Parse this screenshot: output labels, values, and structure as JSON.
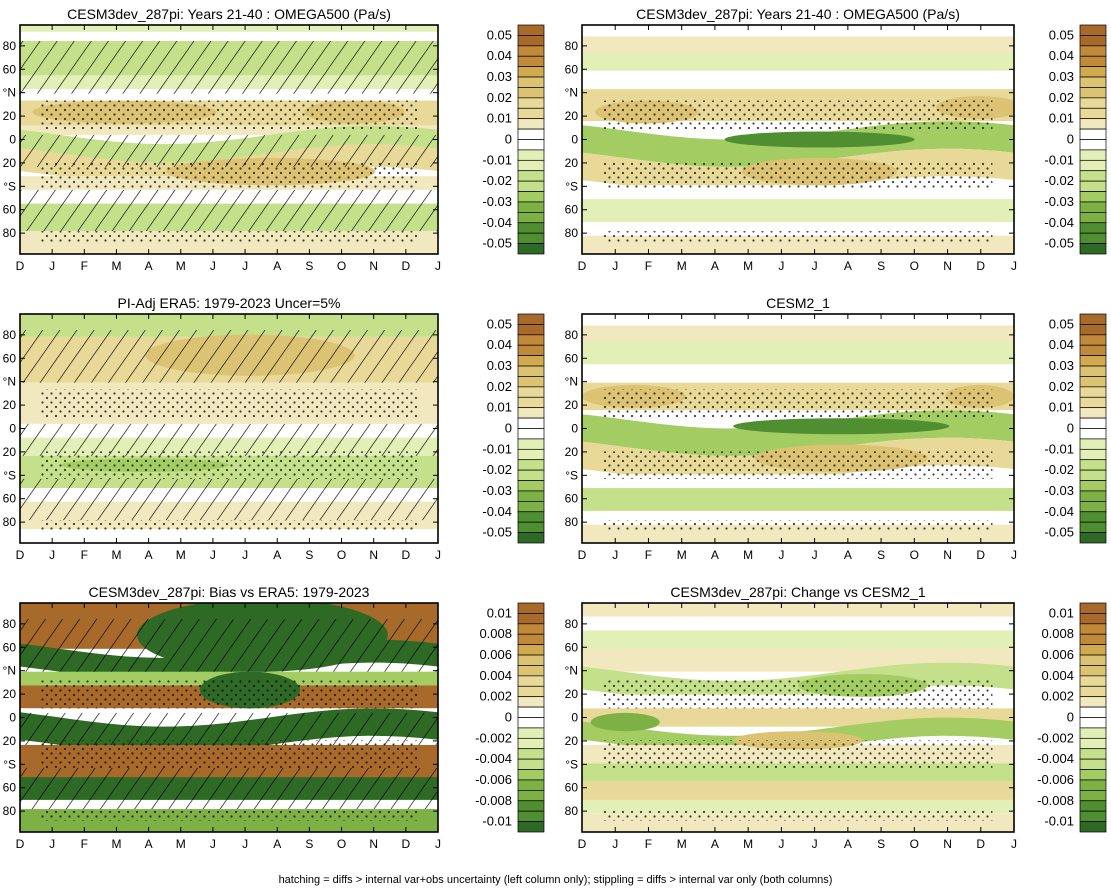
{
  "footnote": "hatching = diffs > internal var+obs uncertainty (left column only); stippling = diffs > internal var only (both columns)",
  "palette": {
    "brown": [
      "#f2e8bf",
      "#e8d999",
      "#dcc273",
      "#d1aa50",
      "#c08a3a",
      "#a86a2a"
    ],
    "green": [
      "#e2efb6",
      "#c5e08a",
      "#a3cd62",
      "#7db145",
      "#4f8f31",
      "#2e6a25"
    ]
  },
  "colorbars": {
    "main": [
      "0.05",
      "0.04",
      "0.03",
      "0.02",
      "0.01",
      "0",
      "-0.01",
      "-0.02",
      "-0.03",
      "-0.04",
      "-0.05"
    ],
    "diff": [
      "0.01",
      "0.008",
      "0.006",
      "0.004",
      "0.002",
      "0",
      "-0.002",
      "-0.004",
      "-0.006",
      "-0.008",
      "-0.01"
    ]
  },
  "axes": {
    "x_ticks": [
      "D",
      "J",
      "F",
      "M",
      "A",
      "M",
      "J",
      "J",
      "A",
      "S",
      "O",
      "N",
      "D",
      "J"
    ],
    "y_ticks": [
      "80",
      "60",
      "°N",
      "20",
      "0",
      "20",
      "°S",
      "60",
      "80"
    ]
  },
  "panels": [
    {
      "title": "CESM3dev_287pi: Years 21-40 : OMEGA500 (Pa/s)",
      "colorbar": "main",
      "hatch": true,
      "chart_data": {
        "type": "heatmap",
        "x": "month",
        "y": "latitude",
        "units": "Pa/s",
        "range": [
          -0.05,
          0.05
        ]
      }
    },
    {
      "title": "CESM3dev_287pi: Years 21-40 : OMEGA500 (Pa/s)",
      "colorbar": "main",
      "hatch": false,
      "chart_data": {
        "type": "heatmap",
        "x": "month",
        "y": "latitude",
        "units": "Pa/s",
        "range": [
          -0.05,
          0.05
        ]
      }
    },
    {
      "title": "PI-Adj ERA5: 1979-2023 Uncer=5%",
      "colorbar": "main",
      "hatch": true,
      "chart_data": {
        "type": "heatmap",
        "x": "month",
        "y": "latitude",
        "units": "Pa/s",
        "range": [
          -0.05,
          0.05
        ]
      }
    },
    {
      "title": "CESM2_1",
      "colorbar": "main",
      "hatch": false,
      "chart_data": {
        "type": "heatmap",
        "x": "month",
        "y": "latitude",
        "units": "Pa/s",
        "range": [
          -0.05,
          0.05
        ]
      }
    },
    {
      "title": "CESM3dev_287pi: Bias vs ERA5: 1979-2023",
      "colorbar": "diff",
      "hatch": true,
      "chart_data": {
        "type": "heatmap",
        "x": "month",
        "y": "latitude",
        "units": "Pa/s",
        "range": [
          -0.01,
          0.01
        ]
      }
    },
    {
      "title": "CESM3dev_287pi: Change vs CESM2_1",
      "colorbar": "diff",
      "hatch": false,
      "chart_data": {
        "type": "heatmap",
        "x": "month",
        "y": "latitude",
        "units": "Pa/s",
        "range": [
          -0.01,
          0.01
        ]
      }
    }
  ],
  "chart_data": [
    {
      "type": "heatmap",
      "title": "CESM3dev_287pi: Years 21-40 : OMEGA500 (Pa/s)",
      "y_ticks": [
        "80",
        "60",
        "°N",
        "20",
        "0",
        "20",
        "°S",
        "60",
        "80"
      ],
      "bands": [
        {
          "lat": "80N",
          "value": -0.01
        },
        {
          "lat": "60N",
          "value": -0.02
        },
        {
          "lat": "20N",
          "value": 0.02
        },
        {
          "lat": "0",
          "value": -0.03
        },
        {
          "lat": "20S",
          "value": 0.02
        },
        {
          "lat": "60S",
          "value": -0.02
        },
        {
          "lat": "80S",
          "value": 0.01
        }
      ]
    },
    {
      "type": "heatmap",
      "title": "CESM3dev_287pi: Years 21-40 : OMEGA500 (Pa/s)",
      "bands": [
        {
          "lat": "60N",
          "value": -0.01
        },
        {
          "lat": "20N",
          "value": 0.02
        },
        {
          "lat": "0",
          "value": -0.03
        },
        {
          "lat": "20S",
          "value": 0.02
        },
        {
          "lat": "60S",
          "value": -0.01
        }
      ]
    },
    {
      "type": "heatmap",
      "title": "PI-Adj ERA5: 1979-2023 Uncer=5%",
      "bands": [
        {
          "lat": "80N",
          "value": -0.02
        },
        {
          "lat": "60N",
          "value": 0.02
        },
        {
          "lat": "20N",
          "value": 0.01
        },
        {
          "lat": "0",
          "value": -0.01
        },
        {
          "lat": "20S",
          "value": -0.02
        },
        {
          "lat": "60S",
          "value": 0.01
        }
      ]
    },
    {
      "type": "heatmap",
      "title": "CESM2_1",
      "bands": [
        {
          "lat": "60N",
          "value": -0.01
        },
        {
          "lat": "20N",
          "value": 0.02
        },
        {
          "lat": "0",
          "value": -0.03
        },
        {
          "lat": "20S",
          "value": 0.02
        },
        {
          "lat": "60S",
          "value": -0.01
        }
      ]
    },
    {
      "type": "heatmap",
      "title": "CESM3dev_287pi: Bias vs ERA5: 1979-2023",
      "bands": [
        {
          "lat": "80N",
          "value": 0.008
        },
        {
          "lat": "60N",
          "value": -0.01
        },
        {
          "lat": "20N",
          "value": 0.008
        },
        {
          "lat": "0",
          "value": -0.01
        },
        {
          "lat": "20S",
          "value": 0.008
        },
        {
          "lat": "60S",
          "value": -0.01
        }
      ]
    },
    {
      "type": "heatmap",
      "title": "CESM3dev_287pi: Change vs CESM2_1",
      "bands": [
        {
          "lat": "60N",
          "value": -0.002
        },
        {
          "lat": "20N",
          "value": -0.004
        },
        {
          "lat": "0",
          "value": 0.004
        },
        {
          "lat": "20S",
          "value": -0.004
        },
        {
          "lat": "60S",
          "value": 0.002
        }
      ]
    }
  ]
}
